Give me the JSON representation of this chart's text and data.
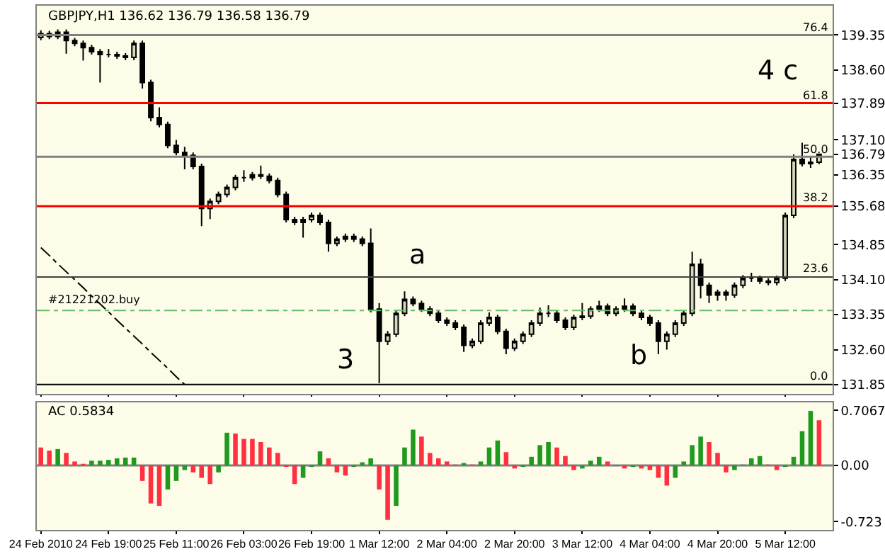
{
  "chart_data": [
    {
      "type": "candlestick",
      "title": "GBPJPY,H1 136.62 136.79 136.58 136.79",
      "ohlc": [
        [
          139.3,
          139.45,
          139.24,
          139.38
        ],
        [
          139.38,
          139.44,
          139.26,
          139.32
        ],
        [
          139.32,
          139.47,
          139.26,
          139.41
        ],
        [
          139.41,
          139.47,
          138.95,
          139.23
        ],
        [
          139.23,
          139.29,
          139.11,
          139.17
        ],
        [
          139.17,
          139.23,
          138.8,
          139.08
        ],
        [
          139.08,
          139.14,
          138.93,
          138.99
        ],
        [
          138.99,
          139.05,
          138.33,
          138.93
        ],
        [
          138.93,
          139.05,
          138.87,
          138.93
        ],
        [
          138.93,
          138.99,
          138.84,
          138.9
        ],
        [
          138.9,
          138.96,
          138.81,
          138.87
        ],
        [
          138.87,
          139.23,
          138.81,
          139.17
        ],
        [
          139.17,
          139.23,
          138.2,
          138.33
        ],
        [
          138.33,
          138.39,
          137.5,
          137.58
        ],
        [
          137.58,
          137.8,
          137.37,
          137.43
        ],
        [
          137.43,
          137.49,
          136.92,
          136.98
        ],
        [
          136.98,
          137.1,
          136.77,
          136.83
        ],
        [
          136.83,
          136.95,
          136.47,
          136.77
        ],
        [
          136.77,
          136.83,
          136.47,
          136.53
        ],
        [
          136.53,
          136.59,
          135.25,
          135.63
        ],
        [
          135.63,
          135.84,
          135.4,
          135.78
        ],
        [
          135.78,
          135.99,
          135.72,
          135.93
        ],
        [
          135.93,
          136.14,
          135.87,
          136.08
        ],
        [
          136.08,
          136.35,
          136.02,
          136.29
        ],
        [
          136.29,
          136.45,
          136.2,
          136.29
        ],
        [
          136.29,
          136.41,
          136.23,
          136.35
        ],
        [
          136.35,
          136.55,
          136.26,
          136.32
        ],
        [
          136.32,
          136.38,
          136.17,
          136.23
        ],
        [
          136.23,
          136.29,
          135.87,
          135.93
        ],
        [
          135.93,
          135.99,
          135.33,
          135.39
        ],
        [
          135.39,
          135.45,
          135.27,
          135.33
        ],
        [
          135.33,
          135.45,
          135.0,
          135.39
        ],
        [
          135.39,
          135.54,
          135.33,
          135.48
        ],
        [
          135.48,
          135.54,
          135.27,
          135.33
        ],
        [
          135.33,
          135.39,
          134.7,
          134.88
        ],
        [
          134.88,
          135.03,
          134.82,
          134.97
        ],
        [
          134.97,
          135.09,
          134.91,
          135.03
        ],
        [
          135.03,
          135.09,
          134.91,
          134.97
        ],
        [
          134.97,
          135.03,
          134.82,
          134.88
        ],
        [
          134.88,
          135.2,
          133.4,
          133.47
        ],
        [
          133.47,
          133.6,
          131.88,
          132.78
        ],
        [
          132.78,
          133.0,
          132.7,
          132.93
        ],
        [
          132.93,
          133.45,
          132.87,
          133.38
        ],
        [
          133.38,
          133.85,
          133.32,
          133.68
        ],
        [
          133.68,
          133.74,
          133.53,
          133.59
        ],
        [
          133.59,
          133.65,
          133.41,
          133.47
        ],
        [
          133.47,
          133.53,
          133.32,
          133.38
        ],
        [
          133.38,
          133.44,
          133.17,
          133.23
        ],
        [
          133.23,
          133.29,
          133.11,
          133.17
        ],
        [
          133.17,
          133.23,
          133.02,
          133.08
        ],
        [
          133.08,
          133.14,
          132.55,
          132.69
        ],
        [
          132.69,
          132.84,
          132.63,
          132.78
        ],
        [
          132.78,
          133.23,
          132.72,
          133.17
        ],
        [
          133.17,
          133.4,
          133.11,
          133.29
        ],
        [
          133.29,
          133.35,
          132.93,
          132.99
        ],
        [
          132.99,
          133.05,
          132.5,
          132.63
        ],
        [
          132.63,
          132.84,
          132.57,
          132.78
        ],
        [
          132.78,
          132.99,
          132.72,
          132.93
        ],
        [
          132.93,
          133.23,
          132.87,
          133.17
        ],
        [
          133.17,
          133.5,
          133.11,
          133.38
        ],
        [
          133.38,
          133.55,
          133.3,
          133.38
        ],
        [
          133.38,
          133.44,
          133.17,
          133.23
        ],
        [
          133.23,
          133.29,
          133.02,
          133.08
        ],
        [
          133.08,
          133.35,
          133.02,
          133.29
        ],
        [
          133.29,
          133.6,
          133.23,
          133.32
        ],
        [
          133.32,
          133.53,
          133.26,
          133.47
        ],
        [
          133.47,
          133.65,
          133.41,
          133.53
        ],
        [
          133.53,
          133.59,
          133.32,
          133.38
        ],
        [
          133.38,
          133.53,
          133.32,
          133.47
        ],
        [
          133.47,
          133.7,
          133.41,
          133.53
        ],
        [
          133.53,
          133.59,
          133.32,
          133.38
        ],
        [
          133.38,
          133.44,
          133.23,
          133.29
        ],
        [
          133.29,
          133.35,
          133.11,
          133.17
        ],
        [
          133.17,
          133.23,
          132.5,
          132.78
        ],
        [
          132.78,
          132.99,
          132.6,
          132.93
        ],
        [
          132.93,
          133.23,
          132.87,
          133.17
        ],
        [
          133.17,
          133.44,
          133.11,
          133.38
        ],
        [
          133.38,
          134.7,
          133.32,
          134.43
        ],
        [
          134.43,
          134.55,
          133.7,
          133.98
        ],
        [
          133.98,
          134.04,
          133.6,
          133.77
        ],
        [
          133.77,
          133.89,
          133.65,
          133.83
        ],
        [
          133.83,
          133.89,
          133.65,
          133.77
        ],
        [
          133.77,
          134.04,
          133.71,
          133.98
        ],
        [
          133.98,
          134.2,
          133.92,
          134.13
        ],
        [
          134.13,
          134.25,
          134.05,
          134.13
        ],
        [
          134.13,
          134.19,
          134.01,
          134.07
        ],
        [
          134.07,
          134.13,
          133.98,
          134.04
        ],
        [
          134.04,
          134.19,
          133.98,
          134.13
        ],
        [
          134.13,
          135.54,
          134.07,
          135.48
        ],
        [
          135.48,
          136.79,
          135.42,
          136.68
        ],
        [
          136.68,
          137.04,
          136.53,
          136.59
        ],
        [
          136.59,
          136.74,
          136.5,
          136.62
        ],
        [
          136.62,
          136.79,
          136.58,
          136.79
        ]
      ],
      "series": [
        {
          "type": "line",
          "values": [
            134.79,
            134.62,
            134.44,
            134.27,
            134.1,
            133.93,
            133.75,
            133.58,
            133.41,
            133.23,
            133.06,
            132.89,
            132.72,
            132.54,
            132.37,
            132.2,
            132.02,
            131.85,
            null,
            null,
            null,
            null,
            null,
            null,
            null,
            null,
            null,
            null,
            null,
            null,
            null,
            null,
            null,
            null,
            null,
            null,
            null,
            null,
            null,
            null,
            null,
            null,
            null,
            null,
            null,
            null,
            null,
            null,
            null,
            null,
            null,
            null,
            null,
            null,
            null,
            null,
            null,
            null,
            null,
            null,
            null,
            null,
            null,
            null,
            null,
            null,
            null,
            null,
            null,
            null,
            null,
            null,
            null,
            null,
            null,
            null,
            null,
            null,
            null,
            null,
            null,
            null,
            null,
            null,
            null,
            null,
            null,
            null,
            null,
            null,
            null,
            null,
            null
          ],
          "color": "#000000",
          "line_style": "dashed"
        }
      ],
      "ylim": [
        131.65,
        139.98
      ],
      "yticks": [
        139.35,
        {
          "value": 138.6,
          "label": "138.60"
        },
        137.89,
        {
          "value": 137.1,
          "label": "137.10"
        },
        136.79,
        136.35,
        135.68,
        134.85,
        {
          "value": 134.1,
          "label": "134.10"
        },
        133.35,
        {
          "value": 132.6,
          "label": "132.60"
        },
        131.85
      ],
      "tick_labels": "y",
      "grid": false,
      "ref_lines": [
        {
          "axis": "y",
          "value": 139.35,
          "color": "#808080",
          "line_style": "solid"
        },
        {
          "axis": "y",
          "value": 137.89,
          "color": "#ff0000",
          "line_style": "solid"
        },
        {
          "axis": "y",
          "value": 136.74,
          "color": "#808080",
          "line_style": "solid"
        },
        {
          "axis": "y",
          "value": 135.68,
          "color": "#ff0000",
          "line_style": "solid"
        },
        {
          "axis": "y",
          "value": 134.16,
          "color": "#404040",
          "line_style": "solid"
        },
        {
          "axis": "y",
          "value": 131.85,
          "color": "#000000",
          "line_style": "solid"
        },
        {
          "axis": "y",
          "value": 133.44,
          "label": "#21221202.buy",
          "color": "#66bb66",
          "line_style": "dashed"
        }
      ],
      "annotations": [
        "3",
        "a",
        "b",
        "4 c",
        {
          "text": "76.4",
          "y": 139.35
        },
        {
          "text": "61.8",
          "y": 137.89
        },
        {
          "text": "50.0",
          "y": 136.74
        },
        {
          "text": "38.2",
          "y": 135.68
        },
        {
          "text": "23.6",
          "y": 134.16
        },
        {
          "text": "0.0",
          "y": 131.85
        }
      ]
    },
    {
      "type": "bar",
      "title": "AC 0.5834",
      "categories": [
        "24 Feb 2010",
        null,
        null,
        null,
        null,
        null,
        null,
        null,
        "24 Feb 19:00",
        null,
        null,
        null,
        null,
        null,
        null,
        null,
        "25 Feb 11:00",
        null,
        null,
        null,
        null,
        null,
        null,
        null,
        "26 Feb 03:00",
        null,
        null,
        null,
        null,
        null,
        null,
        null,
        "26 Feb 19:00",
        null,
        null,
        null,
        null,
        null,
        null,
        null,
        "1 Mar 12:00",
        null,
        null,
        null,
        null,
        null,
        null,
        null,
        "2 Mar 04:00",
        null,
        null,
        null,
        null,
        null,
        null,
        null,
        "2 Mar 20:00",
        null,
        null,
        null,
        null,
        null,
        null,
        null,
        "3 Mar 12:00",
        null,
        null,
        null,
        null,
        null,
        null,
        null,
        "4 Mar 04:00",
        null,
        null,
        null,
        null,
        null,
        null,
        null,
        "4 Mar 20:00",
        null,
        null,
        null,
        null,
        null,
        null,
        null,
        "5 Mar 12:00",
        null,
        null,
        null,
        null
      ],
      "values": [
        0.23,
        0.19,
        0.21,
        0.16,
        0.05,
        0.02,
        0.06,
        0.06,
        0.07,
        0.09,
        0.1,
        0.1,
        -0.2,
        -0.49,
        -0.52,
        -0.31,
        -0.2,
        -0.06,
        -0.09,
        -0.16,
        -0.24,
        -0.09,
        0.42,
        0.41,
        0.34,
        0.34,
        0.3,
        0.23,
        0.16,
        -0.02,
        -0.24,
        -0.16,
        -0.02,
        0.18,
        0.09,
        -0.09,
        -0.13,
        -0.02,
        0.04,
        0.09,
        -0.31,
        -0.7,
        -0.52,
        0.23,
        0.46,
        0.37,
        0.16,
        0.09,
        0.05,
        0.01,
        0.03,
        0.01,
        0.05,
        0.23,
        0.32,
        0.17,
        -0.04,
        -0.02,
        0.11,
        0.26,
        0.3,
        0.23,
        0.12,
        -0.06,
        -0.04,
        0.06,
        0.11,
        0.05,
        -0.01,
        -0.04,
        -0.02,
        -0.04,
        -0.06,
        -0.16,
        -0.26,
        -0.16,
        0.05,
        0.26,
        0.37,
        0.3,
        0.16,
        -0.09,
        -0.06,
        0.01,
        0.09,
        0.12,
        0.01,
        -0.06,
        -0.02,
        0.11,
        0.44,
        0.7,
        0.58
      ],
      "colors": [
        "#ff3040",
        "#ff3040",
        "#1f9a1f",
        "#ff3040",
        "#ff3040",
        "#ff3040",
        "#1f9a1f",
        "#1f9a1f",
        "#1f9a1f",
        "#1f9a1f",
        "#1f9a1f",
        "#1f9a1f",
        "#ff3040",
        "#ff3040",
        "#ff3040",
        "#1f9a1f",
        "#1f9a1f",
        "#1f9a1f",
        "#ff3040",
        "#ff3040",
        "#ff3040",
        "#1f9a1f",
        "#1f9a1f",
        "#ff3040",
        "#ff3040",
        "#ff3040",
        "#ff3040",
        "#ff3040",
        "#ff3040",
        "#ff3040",
        "#ff3040",
        "#1f9a1f",
        "#1f9a1f",
        "#1f9a1f",
        "#ff3040",
        "#ff3040",
        "#ff3040",
        "#1f9a1f",
        "#1f9a1f",
        "#1f9a1f",
        "#ff3040",
        "#ff3040",
        "#1f9a1f",
        "#1f9a1f",
        "#1f9a1f",
        "#ff3040",
        "#ff3040",
        "#ff3040",
        "#ff3040",
        "#ff3040",
        "#1f9a1f",
        "#ff3040",
        "#1f9a1f",
        "#1f9a1f",
        "#1f9a1f",
        "#ff3040",
        "#ff3040",
        "#1f9a1f",
        "#1f9a1f",
        "#1f9a1f",
        "#1f9a1f",
        "#ff3040",
        "#ff3040",
        "#ff3040",
        "#1f9a1f",
        "#1f9a1f",
        "#1f9a1f",
        "#ff3040",
        "#ff3040",
        "#ff3040",
        "#1f9a1f",
        "#ff3040",
        "#ff3040",
        "#ff3040",
        "#ff3040",
        "#1f9a1f",
        "#1f9a1f",
        "#1f9a1f",
        "#1f9a1f",
        "#ff3040",
        "#ff3040",
        "#ff3040",
        "#1f9a1f",
        "#1f9a1f",
        "#1f9a1f",
        "#1f9a1f",
        "#ff3040",
        "#ff3040",
        "#1f9a1f",
        "#1f9a1f",
        "#1f9a1f",
        "#1f9a1f",
        "#ff3040"
      ],
      "ylim": [
        -0.83,
        0.81
      ],
      "yticks": [
        0.7067,
        {
          "value": 0,
          "label": "0.00"
        },
        -0.723
      ],
      "ref_lines": [
        {
          "axis": "y",
          "value": 0,
          "color": "#808080",
          "line_style": "solid"
        }
      ],
      "grid": false
    }
  ]
}
